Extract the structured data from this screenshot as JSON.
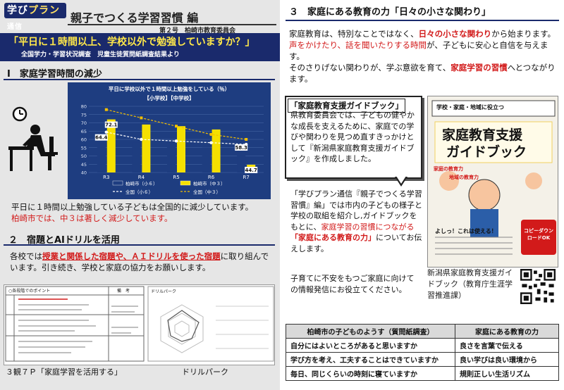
{
  "masthead": {
    "logo_a": "学び",
    "logo_b": "プラン",
    "logo_c": "通信",
    "title": "親子でつくる学習習慣 編",
    "issue": "第２号",
    "publisher": "柏崎市教育委員会"
  },
  "question_banner": {
    "question": "「平日に１時間以上、学校以外で勉強していますか？」",
    "source": "全国学力・学習状況調査　児童生徒質問紙調査結果より"
  },
  "section1": {
    "heading": "Ⅰ　家庭学習時間の減少",
    "body_1": "平日に１時間以上勉強している子どもは全国的に減少しています。",
    "body_2_red": "柏崎市では、中３は著しく減少しています。"
  },
  "chart_data": {
    "type": "bar",
    "title": "平日に学校以外で１時間以上勉強をしている（％）",
    "subtitle": "【小学校】【中学校】",
    "categories": [
      "R3",
      "R4",
      "R5",
      "R6",
      "R7"
    ],
    "ylim": [
      40,
      80
    ],
    "yticks": [
      40,
      45,
      50,
      55,
      60,
      65,
      70,
      75,
      80
    ],
    "grid": true,
    "legend_position": "bottom",
    "series": [
      {
        "name": "柏崎市（小６）",
        "kind": "bar",
        "color": "#1e3d80",
        "values": [
          64.4,
          58,
          58,
          55,
          58.3
        ]
      },
      {
        "name": "柏崎市（中３）",
        "kind": "bar",
        "color": "#f5e000",
        "values": [
          72.1,
          69,
          68,
          66,
          44.7
        ]
      },
      {
        "name": "全国（小６）",
        "kind": "line",
        "color": "#ffffff",
        "values": [
          64.4,
          60,
          59,
          58,
          57
        ]
      },
      {
        "name": "全国（中３）",
        "kind": "line",
        "color": "#f5c000",
        "values": [
          78,
          73,
          68,
          63,
          60
        ]
      }
    ],
    "data_labels": [
      {
        "series": 0,
        "index": 0,
        "text": "64.4"
      },
      {
        "series": 1,
        "index": 0,
        "text": "72.1"
      },
      {
        "series": 0,
        "index": 4,
        "text": "58.3"
      },
      {
        "series": 1,
        "index": 4,
        "text": "44.7"
      }
    ]
  },
  "section2": {
    "heading": "２　宿題とAIドリルを活用",
    "body_a": "各校では",
    "body_red_1": "授業と関係した宿題や、ＡＩドリルを使った宿題",
    "body_b": "に取り組んでいます。引き続き、学校と家庭の協力をお願いします。",
    "worksheet_caption": "３観７Ｐ「家庭学習を活用する」",
    "drill_caption": "ドリルパーク",
    "worksheet_header": "○各段階でのポイント",
    "worksheet_col": "備　考",
    "drill_label": "ドリルパーク"
  },
  "section3": {
    "heading": "３　家庭にある教育の力「日々の小さな関わり」",
    "p1_a": "家庭教育は、特別なことではなく、",
    "p1_red": "日々の小さな関わり",
    "p1_b": "から始まります。",
    "p2_red": "声をかけたり、話を聞いたりする時間",
    "p2_b": "が、子どもに安心と自信を与えます。",
    "p3_a": "そのさりげない関わりが、学ぶ意欲を育て、",
    "p3_red": "家庭学習の習慣",
    "p3_b": "へとつながります。"
  },
  "guidebook": {
    "callout_title": "「家庭教育支援ガイドブック」",
    "callout_body": "県教育委員会では、子どもの健やかな成長を支えるために、家庭での学びや関わりを見つめ直すきっかけとして『新潟県家庭教育支援ガイドブック』を作成しました。",
    "para_a": "「学びプラン通信『親子でつくる学習習慣』編」では市内の子どもの様子と学校の取組を紹介し,ガイドブックをもとに、",
    "para_red_1": "家庭学習の習慣につながる",
    "para_red_2": "「家庭にある教育の力」",
    "para_b": "についてお伝えします。",
    "para_2": "子育てに不安をもつご家庭に向けての情報発信にお役立てください。",
    "book_banner": "学校・家庭・地域に役立つ",
    "book_title_1": "家庭教育支援",
    "book_title_2": "ガイドブック",
    "book_footer": "よしっ！これは使える！",
    "book_qr_label": "コピーダウンロードOK",
    "book_bubble_1": "家庭の教育力",
    "book_bubble_2": "地域の教育力",
    "caption": "新潟県家庭教育支援ガイドブック（教育庁生涯学習推進課）"
  },
  "table": {
    "headers": [
      "柏崎市の子どものようす（質問紙調査）",
      "家庭にある教育の力"
    ],
    "rows": [
      [
        "自分にはよいところがあると思いますか",
        "良さを言葉で伝える"
      ],
      [
        "学び方を考え、工夫することはできていますか",
        "良い学びは良い環境から"
      ],
      [
        "毎日、同じくらいの時刻に寝ていますか",
        "規則正しい生活リズム"
      ]
    ]
  }
}
